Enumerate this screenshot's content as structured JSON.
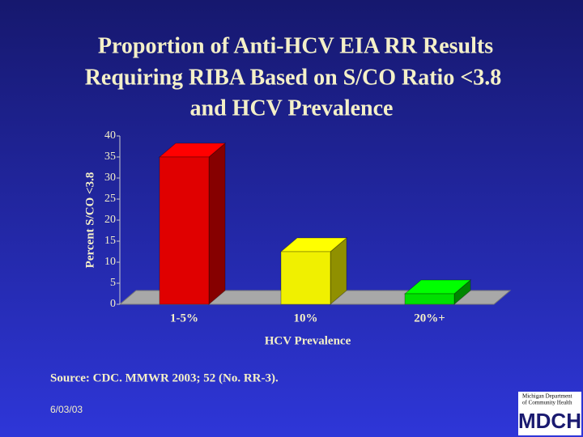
{
  "chart_data": {
    "type": "bar3d",
    "title": [
      "Proportion of Anti-HCV EIA RR Results",
      "Requiring RIBA Based on S/CO Ratio <3.8",
      "and HCV Prevalence"
    ],
    "y_label": "Percent S/CO <3.8",
    "x_label": "HCV Prevalence",
    "categories": [
      "1-5%",
      "10%",
      "20%+"
    ],
    "values": [
      35,
      12.5,
      2.5
    ],
    "colors": [
      "#e00000",
      "#f0f000",
      "#00e000"
    ],
    "ylim": [
      0,
      40
    ],
    "yticks": [
      0,
      5,
      10,
      15,
      20,
      25,
      30,
      35,
      40
    ]
  },
  "footer": {
    "source": "Source: CDC. MMWR 2003; 52 (No. RR-3).",
    "date": "6/03/03",
    "logo": {
      "line1": "Michigan Department",
      "line2": "of Community Health",
      "mark": "MDCH"
    }
  }
}
